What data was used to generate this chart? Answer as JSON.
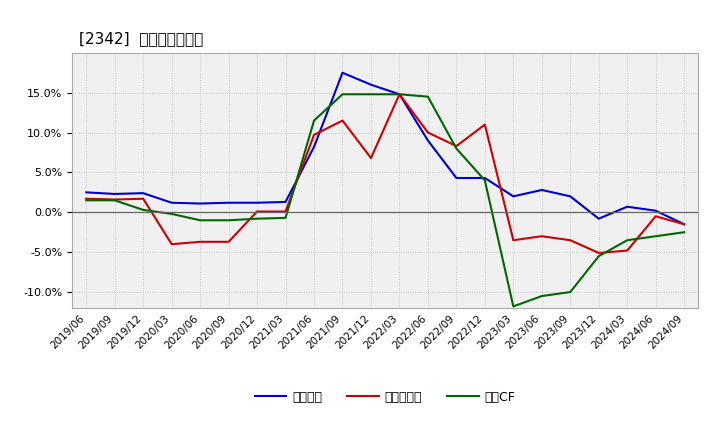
{
  "title": "[2342]  マージンの推移",
  "x_labels": [
    "2019/06",
    "2019/09",
    "2019/12",
    "2020/03",
    "2020/06",
    "2020/09",
    "2020/12",
    "2021/03",
    "2021/06",
    "2021/09",
    "2021/12",
    "2022/03",
    "2022/06",
    "2022/09",
    "2022/12",
    "2023/03",
    "2023/06",
    "2023/09",
    "2023/12",
    "2024/03",
    "2024/06",
    "2024/09"
  ],
  "series": {
    "経常利益": {
      "color": "#0000cc",
      "values": [
        2.5,
        2.3,
        2.4,
        1.2,
        1.1,
        1.2,
        1.2,
        1.3,
        8.2,
        17.5,
        16.0,
        14.8,
        9.0,
        4.3,
        4.3,
        2.0,
        2.8,
        2.0,
        -0.8,
        0.7,
        0.2,
        -1.5
      ]
    },
    "当期純利益": {
      "color": "#cc0000",
      "values": [
        1.7,
        1.6,
        1.7,
        -4.0,
        -3.7,
        -3.7,
        0.1,
        0.1,
        9.7,
        11.5,
        6.8,
        14.8,
        10.0,
        8.3,
        11.0,
        -3.5,
        -3.0,
        -3.5,
        -5.1,
        -4.8,
        -0.5,
        -1.5
      ]
    },
    "営業CF": {
      "color": "#006600",
      "values": [
        1.5,
        1.5,
        0.3,
        -0.2,
        -1.0,
        -1.0,
        -0.8,
        -0.7,
        11.5,
        14.8,
        14.8,
        14.8,
        14.5,
        8.0,
        4.0,
        -11.8,
        -10.5,
        -10.0,
        -5.5,
        -3.5,
        -3.0,
        -2.5
      ]
    }
  },
  "ylim": [
    -12,
    20
  ],
  "yticks": [
    -10.0,
    -5.0,
    0.0,
    5.0,
    10.0,
    15.0
  ],
  "background_color": "#ffffff",
  "plot_bg_color": "#f0f0f0",
  "grid_color": "#bbbbbb",
  "legend_labels": [
    "経常利益",
    "当期純利益",
    "営業CF"
  ]
}
